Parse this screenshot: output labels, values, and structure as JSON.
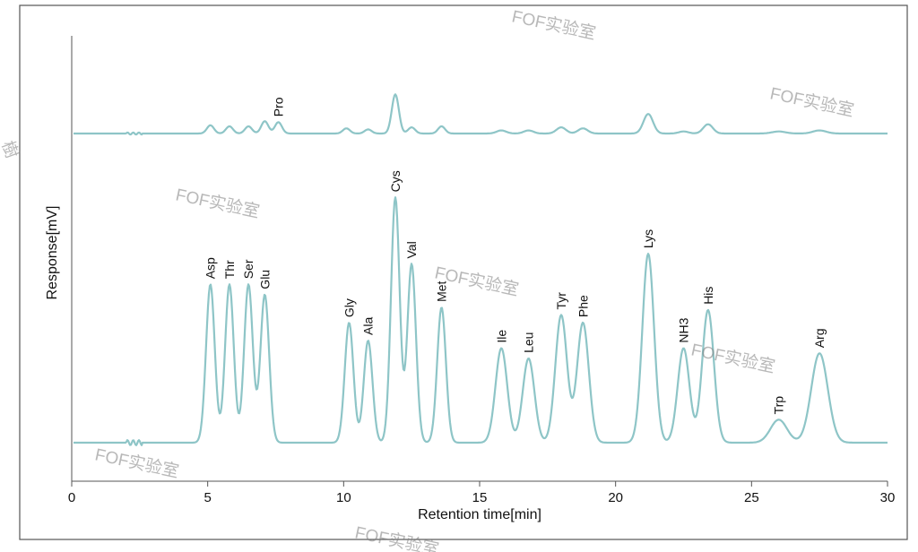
{
  "chart_data": {
    "type": "line",
    "xlabel": "Retention time[min]",
    "ylabel": "Response[mV]",
    "xlim": [
      0,
      30
    ],
    "xticks": [
      0,
      5,
      10,
      15,
      20,
      25,
      30
    ],
    "grid": false,
    "legend": "none",
    "colors": {
      "trace": "#8ec5c7",
      "frame": "#555555",
      "text": "#111111"
    },
    "series": [
      {
        "peaks": [
          {
            "label": "",
            "rt": 5.1,
            "height": 0.08
          },
          {
            "label": "",
            "rt": 5.8,
            "height": 0.07
          },
          {
            "label": "",
            "rt": 6.5,
            "height": 0.07
          },
          {
            "label": "",
            "rt": 7.1,
            "height": 0.12
          },
          {
            "label": "Pro",
            "rt": 7.6,
            "height": 0.11
          },
          {
            "label": "",
            "rt": 10.1,
            "height": 0.05
          },
          {
            "label": "",
            "rt": 10.9,
            "height": 0.04
          },
          {
            "label": "",
            "rt": 11.9,
            "height": 0.38
          },
          {
            "label": "",
            "rt": 12.5,
            "height": 0.06
          },
          {
            "label": "",
            "rt": 13.6,
            "height": 0.07
          },
          {
            "label": "",
            "rt": 15.8,
            "height": 0.03
          },
          {
            "label": "",
            "rt": 16.8,
            "height": 0.03
          },
          {
            "label": "",
            "rt": 18.0,
            "height": 0.06
          },
          {
            "label": "",
            "rt": 18.8,
            "height": 0.05
          },
          {
            "label": "",
            "rt": 21.2,
            "height": 0.19
          },
          {
            "label": "",
            "rt": 22.5,
            "height": 0.02
          },
          {
            "label": "",
            "rt": 23.4,
            "height": 0.09
          },
          {
            "label": "",
            "rt": 26.0,
            "height": 0.02
          },
          {
            "label": "",
            "rt": 27.5,
            "height": 0.03
          }
        ]
      },
      {
        "peaks": [
          {
            "label": "Asp",
            "rt": 5.1,
            "height": 0.62
          },
          {
            "label": "Thr",
            "rt": 5.8,
            "height": 0.62
          },
          {
            "label": "Ser",
            "rt": 6.5,
            "height": 0.62
          },
          {
            "label": "Glu",
            "rt": 7.1,
            "height": 0.58
          },
          {
            "label": "Gly",
            "rt": 10.2,
            "height": 0.47
          },
          {
            "label": "Ala",
            "rt": 10.9,
            "height": 0.4
          },
          {
            "label": "Cys",
            "rt": 11.9,
            "height": 0.96
          },
          {
            "label": "Val",
            "rt": 12.5,
            "height": 0.7
          },
          {
            "label": "Met",
            "rt": 13.6,
            "height": 0.53
          },
          {
            "label": "Ile",
            "rt": 15.8,
            "height": 0.37
          },
          {
            "label": "Leu",
            "rt": 16.8,
            "height": 0.33
          },
          {
            "label": "Tyr",
            "rt": 18.0,
            "height": 0.5
          },
          {
            "label": "Phe",
            "rt": 18.8,
            "height": 0.47
          },
          {
            "label": "Lys",
            "rt": 21.2,
            "height": 0.74
          },
          {
            "label": "NH3",
            "rt": 22.5,
            "height": 0.37
          },
          {
            "label": "His",
            "rt": 23.4,
            "height": 0.52
          },
          {
            "label": "Trp",
            "rt": 26.0,
            "height": 0.09
          },
          {
            "label": "Arg",
            "rt": 27.5,
            "height": 0.35
          }
        ]
      }
    ]
  },
  "watermark": {
    "text": "FOF实验室",
    "edge_text": "樹"
  }
}
